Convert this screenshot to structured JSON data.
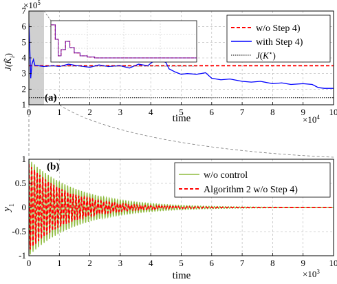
{
  "chart_data": [
    {
      "panel_label": "(a)",
      "type": "line",
      "xlabel": "time",
      "x_multiplier": "×10",
      "x_multiplier_exp": "4",
      "ylabel_base": "J(",
      "ylabel_var": "K̃",
      "ylabel_sub": "i",
      "ylabel_close": ")",
      "y_multiplier": "×10",
      "y_multiplier_exp": "5",
      "xlim": [
        0,
        10
      ],
      "ylim": [
        1,
        7
      ],
      "x_ticks": [
        "0",
        "1",
        "2",
        "3",
        "4",
        "5",
        "6",
        "7",
        "8",
        "9",
        "10"
      ],
      "y_ticks": [
        "1",
        "2",
        "3",
        "4",
        "5",
        "6",
        "7"
      ],
      "grid": true,
      "legend_position": "top-right",
      "series": [
        {
          "name": "w/o Step 4)",
          "color": "#ff0000",
          "style": "dashed",
          "x": [
            0,
            0.2,
            10
          ],
          "y": [
            3.5,
            3.5,
            3.5
          ]
        },
        {
          "name": "with Step 4)",
          "color": "#0000ff",
          "style": "solid",
          "x": [
            0,
            0.03,
            0.06,
            0.1,
            0.15,
            0.2,
            0.3,
            0.5,
            0.8,
            1.0,
            1.3,
            1.6,
            2.0,
            2.3,
            2.6,
            3.0,
            3.3,
            3.6,
            3.9,
            4.1,
            4.3,
            4.5,
            4.6,
            4.8,
            5.0,
            5.2,
            5.5,
            5.8,
            6.0,
            6.3,
            6.6,
            7.0,
            7.3,
            7.6,
            8.0,
            8.3,
            8.6,
            9.0,
            9.3,
            9.5,
            9.7,
            10.0
          ],
          "y": [
            6.2,
            4.6,
            2.7,
            3.6,
            3.9,
            3.5,
            3.5,
            3.45,
            3.5,
            3.45,
            3.6,
            3.5,
            3.4,
            3.55,
            3.45,
            3.5,
            3.35,
            3.6,
            3.5,
            3.8,
            3.9,
            3.7,
            3.3,
            3.1,
            2.95,
            3.0,
            2.95,
            3.05,
            2.7,
            2.6,
            2.65,
            2.5,
            2.45,
            2.5,
            2.35,
            2.4,
            2.3,
            2.35,
            2.3,
            2.1,
            2.05,
            2.05
          ]
        },
        {
          "name": "J(K*)",
          "color": "#000000",
          "style": "dotted",
          "x": [
            0,
            10
          ],
          "y": [
            1.45,
            1.45
          ]
        }
      ],
      "inset": {
        "x": [
          0,
          0.03,
          0.05,
          0.07,
          0.1,
          0.13,
          0.16,
          0.2,
          0.25,
          0.3,
          0.4,
          0.5,
          0.6,
          0.8,
          1.0
        ],
        "y": [
          0.9,
          0.55,
          0.15,
          0.3,
          0.5,
          0.35,
          0.22,
          0.15,
          0.12,
          0.1,
          0.1,
          0.1,
          0.1,
          0.1,
          0.1
        ]
      }
    },
    {
      "panel_label": "(b)",
      "type": "line",
      "xlabel": "time",
      "x_multiplier": "×10",
      "x_multiplier_exp": "3",
      "ylabel_base": "y",
      "ylabel_sub": "1",
      "xlim": [
        0,
        10
      ],
      "ylim": [
        -1,
        1
      ],
      "x_ticks": [
        "0",
        "1",
        "2",
        "3",
        "4",
        "5",
        "6",
        "7",
        "8",
        "9",
        "10"
      ],
      "y_ticks": [
        "-1",
        "-0.5",
        "0",
        "0.5",
        "1"
      ],
      "grid": true,
      "legend_position": "top-right",
      "series": [
        {
          "name": "w/o control",
          "color": "#8fbc3f",
          "style": "solid",
          "envelope": {
            "amplitude": 1.0,
            "decay_rate": 0.62,
            "cycles_per_unit": 11
          }
        },
        {
          "name": "Algorithm 2 w/o Step 4)",
          "color": "#ff0000",
          "style": "dashed",
          "envelope": {
            "amplitude": 0.9,
            "decay_rate": 0.8,
            "cycles_per_unit": 11
          }
        }
      ]
    }
  ]
}
